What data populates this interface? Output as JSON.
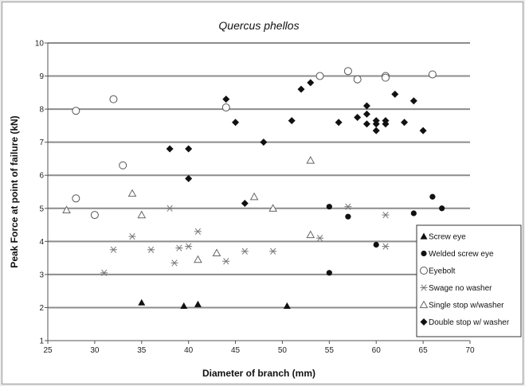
{
  "chart_data": {
    "type": "scatter",
    "title": "Quercus phellos",
    "xlabel": "Diameter of branch (mm)",
    "ylabel": "Peak Force at point of failure (kN)",
    "xlim": [
      25,
      70
    ],
    "ylim": [
      1,
      10
    ],
    "xticks": [
      25,
      30,
      35,
      40,
      45,
      50,
      55,
      60,
      65,
      70
    ],
    "yticks": [
      1,
      2,
      3,
      4,
      5,
      6,
      7,
      8,
      9,
      10
    ],
    "grid": "horizontal",
    "legend_position": "bottom-right",
    "series": [
      {
        "name": "Screw eye",
        "marker": "filled-triangle",
        "color": "#111111",
        "points": [
          [
            35,
            2.15
          ],
          [
            39.5,
            2.05
          ],
          [
            41,
            2.1
          ],
          [
            50.5,
            2.05
          ]
        ]
      },
      {
        "name": "Welded screw eye",
        "marker": "filled-circle",
        "color": "#111111",
        "points": [
          [
            55,
            5.05
          ],
          [
            57,
            4.75
          ],
          [
            55,
            3.05
          ],
          [
            60,
            3.9
          ],
          [
            64,
            4.85
          ],
          [
            66,
            5.35
          ],
          [
            67,
            5.0
          ]
        ]
      },
      {
        "name": "Eyebolt",
        "marker": "open-circle",
        "color": "#555555",
        "points": [
          [
            28,
            7.95
          ],
          [
            32,
            8.3
          ],
          [
            33,
            6.3
          ],
          [
            28,
            5.3
          ],
          [
            30,
            4.8
          ],
          [
            44,
            8.05
          ],
          [
            54,
            9.0
          ],
          [
            57,
            9.15
          ],
          [
            58,
            8.9
          ],
          [
            61,
            9.0
          ],
          [
            61,
            8.95
          ],
          [
            66,
            9.05
          ]
        ]
      },
      {
        "name": "Swage no washer",
        "marker": "asterisk",
        "color": "#777777",
        "points": [
          [
            31,
            3.05
          ],
          [
            32,
            3.75
          ],
          [
            34,
            4.15
          ],
          [
            36,
            3.75
          ],
          [
            38,
            5.0
          ],
          [
            38.5,
            3.35
          ],
          [
            39,
            3.8
          ],
          [
            40,
            3.85
          ],
          [
            41,
            4.3
          ],
          [
            44,
            3.4
          ],
          [
            46,
            3.7
          ],
          [
            49,
            3.7
          ],
          [
            54,
            4.1
          ],
          [
            57,
            5.05
          ],
          [
            61,
            4.8
          ],
          [
            61,
            3.85
          ]
        ]
      },
      {
        "name": "Single stop w/washer",
        "marker": "open-triangle",
        "color": "#666666",
        "points": [
          [
            27,
            4.95
          ],
          [
            34,
            5.45
          ],
          [
            35,
            4.8
          ],
          [
            41,
            3.45
          ],
          [
            43,
            3.65
          ],
          [
            47,
            5.35
          ],
          [
            49,
            5.0
          ],
          [
            53,
            6.45
          ],
          [
            53,
            4.2
          ]
        ]
      },
      {
        "name": "Double stop w/ washer",
        "marker": "filled-diamond",
        "color": "#111111",
        "points": [
          [
            38,
            6.8
          ],
          [
            40,
            6.8
          ],
          [
            40,
            5.9
          ],
          [
            44,
            8.3
          ],
          [
            45,
            7.6
          ],
          [
            46,
            5.15
          ],
          [
            48,
            7.0
          ],
          [
            51,
            7.65
          ],
          [
            52,
            8.6
          ],
          [
            53,
            8.8
          ],
          [
            56,
            7.6
          ],
          [
            58,
            7.75
          ],
          [
            59,
            7.55
          ],
          [
            59,
            7.85
          ],
          [
            59,
            8.1
          ],
          [
            60,
            7.55
          ],
          [
            60,
            7.65
          ],
          [
            60,
            7.35
          ],
          [
            61,
            7.65
          ],
          [
            61,
            7.55
          ],
          [
            62,
            8.45
          ],
          [
            63,
            7.6
          ],
          [
            64,
            8.25
          ],
          [
            65,
            7.35
          ]
        ]
      }
    ]
  }
}
